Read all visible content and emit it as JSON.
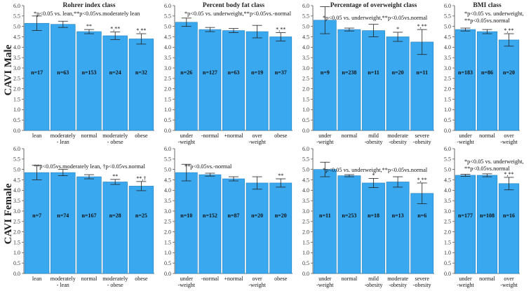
{
  "figure": {
    "row_labels": [
      "CAVI Male",
      "CAVI Female"
    ],
    "bar_color": "#3aa8ef",
    "bar_edge_color": "#1f7fbf",
    "axis_color": "#444444"
  },
  "chart_data": [
    {
      "type": "bar",
      "title": "Rohrer index class",
      "row": "CAVI Male",
      "note": "*p<0.05 vs. lean,**p<0.05vs.moderately lean",
      "categories": [
        "lean",
        "moderately\n- lean",
        "normal",
        "moderately\n- obese",
        "obese"
      ],
      "values": [
        5.15,
        5.1,
        4.75,
        4.55,
        4.4
      ],
      "errors": [
        0.35,
        0.15,
        0.1,
        0.18,
        0.25
      ],
      "sig": [
        "",
        "",
        "**",
        "*,**",
        "*,**"
      ],
      "n": [
        "n=17",
        "n=63",
        "n=153",
        "n=24",
        "n=32"
      ],
      "ylim": [
        0,
        6
      ],
      "yticks": [
        "0.0",
        "0.5",
        "1.0",
        "1.5",
        "2.0",
        "2.5",
        "3.0",
        "3.5",
        "4.0",
        "4.5",
        "5.0",
        "5.5",
        "6.0"
      ]
    },
    {
      "type": "bar",
      "title": "Percent body fat class",
      "row": "CAVI Male",
      "note": "*p<0.05 vs. underweight,**p<0.05vs.-normal",
      "categories": [
        "under\n-weight",
        "-normal",
        "+normal",
        "over\n-weight",
        "obese"
      ],
      "values": [
        5.2,
        4.85,
        4.8,
        4.75,
        4.5
      ],
      "errors": [
        0.2,
        0.1,
        0.1,
        0.3,
        0.2
      ],
      "sig": [
        "",
        "",
        "",
        "",
        "*,**"
      ],
      "n": [
        "n=26",
        "n=127",
        "n=63",
        "n=19",
        "n=37"
      ],
      "ylim": [
        0,
        6
      ],
      "yticks": [
        "0.0",
        "0.5",
        "1.0",
        "1.5",
        "2.0",
        "2.5",
        "3.0",
        "3.5",
        "4.0",
        "4.5",
        "5.0",
        "5.5",
        "6.0"
      ]
    },
    {
      "type": "bar",
      "title": "Percentage of overweight class",
      "row": "CAVI Male",
      "note": "*p<0.05 vs. underweight,**p<0.05vs.normal",
      "categories": [
        "under\n-weight",
        "normal",
        "mild\n-obesity",
        "moderate\n-obesity",
        "severe\n-obesity"
      ],
      "values": [
        5.3,
        4.85,
        4.8,
        4.5,
        4.25
      ],
      "errors": [
        0.65,
        0.07,
        0.3,
        0.22,
        0.6
      ],
      "sig": [
        "",
        "",
        "",
        "*",
        "*,**"
      ],
      "n": [
        "n=9",
        "n=238",
        "n=11",
        "n=20",
        "n=11"
      ],
      "ylim": [
        0,
        6
      ],
      "yticks": [
        "0.0",
        "0.5",
        "1.0",
        "1.5",
        "2.0",
        "2.5",
        "3.0",
        "3.5",
        "4.0",
        "4.5",
        "5.0",
        "5.5",
        "6.0"
      ]
    },
    {
      "type": "bar",
      "title": "BMI class",
      "row": "CAVI Male",
      "note": "*p<0.05 vs. underweight,\n**p<0.05vs.normal",
      "categories": [
        "under\n-weight",
        "normal",
        "over\n-weight"
      ],
      "values": [
        4.85,
        4.75,
        4.35
      ],
      "errors": [
        0.07,
        0.1,
        0.3
      ],
      "sig": [
        "",
        "",
        "*,**"
      ],
      "n": [
        "n=183",
        "n=86",
        "n=20"
      ],
      "ylim": [
        0,
        6
      ],
      "yticks": [
        "0.0",
        "0.5",
        "1.0",
        "1.5",
        "2.0",
        "2.5",
        "3.0",
        "3.5",
        "4.0",
        "4.5",
        "5.0",
        "5.5",
        "6.0"
      ]
    },
    {
      "type": "bar",
      "title": "",
      "row": "CAVI Female",
      "note": "**p<0.05vs.moderately lean, †p<0.05vs.normal",
      "categories": [
        "lean",
        "moderately\n- lean",
        "normal",
        "moderately\n- obese",
        "obese"
      ],
      "values": [
        4.85,
        4.85,
        4.65,
        4.4,
        4.2
      ],
      "errors": [
        0.35,
        0.15,
        0.1,
        0.12,
        0.22
      ],
      "sig": [
        "",
        "",
        "",
        "**",
        "**,†"
      ],
      "n": [
        "n=7",
        "n=74",
        "n=167",
        "n=28",
        "n=25"
      ],
      "ylim": [
        0,
        6
      ],
      "yticks": [
        "0.0",
        "0.5",
        "1.0",
        "1.5",
        "2.0",
        "2.5",
        "3.0",
        "3.5",
        "4.0",
        "4.5",
        "5.0",
        "5.5",
        "6.0"
      ]
    },
    {
      "type": "bar",
      "title": "",
      "row": "CAVI Female",
      "note": "**p<0.05vs.-normal",
      "categories": [
        "under\n-weight",
        "-normal",
        "+normal",
        "over\n-weight",
        "obese"
      ],
      "values": [
        4.85,
        4.75,
        4.55,
        4.35,
        4.35
      ],
      "errors": [
        0.4,
        0.07,
        0.1,
        0.3,
        0.2
      ],
      "sig": [
        "",
        "",
        "",
        "",
        "**"
      ],
      "n": [
        "n=10",
        "n=152",
        "n=87",
        "n=20",
        "n=20"
      ],
      "ylim": [
        0,
        6
      ],
      "yticks": [
        "0.0",
        "0.5",
        "1.0",
        "1.5",
        "2.0",
        "2.5",
        "3.0",
        "3.5",
        "4.0",
        "4.5",
        "5.0",
        "5.5",
        "6.0"
      ]
    },
    {
      "type": "bar",
      "title": "",
      "row": "CAVI Female",
      "note": "*p<0.05 vs. underweight,**p<0.05vs.normal",
      "categories": [
        "under\n-weight",
        "normal",
        "mild\n-obesity",
        "moderate\n-obesity",
        "severe\n-obesity"
      ],
      "values": [
        5.0,
        4.7,
        4.35,
        4.4,
        3.85
      ],
      "errors": [
        0.35,
        0.05,
        0.22,
        0.25,
        0.5
      ],
      "sig": [
        "",
        "",
        "*",
        "",
        "*,**"
      ],
      "n": [
        "n=11",
        "n=253",
        "n=18",
        "n=13",
        "n=6"
      ],
      "ylim": [
        0,
        6
      ],
      "yticks": [
        "0.0",
        "0.5",
        "1.0",
        "1.5",
        "2.0",
        "2.5",
        "3.0",
        "3.5",
        "4.0",
        "4.5",
        "5.0",
        "5.5",
        "6.0"
      ]
    },
    {
      "type": "bar",
      "title": "",
      "row": "CAVI Female",
      "note": "*p<0.05 vs. underweight,\n**p<0.05vs.normal",
      "categories": [
        "under\n-weight",
        "normal",
        "over\n-weight"
      ],
      "values": [
        4.72,
        4.72,
        4.32
      ],
      "errors": [
        0.05,
        0.07,
        0.3
      ],
      "sig": [
        "",
        "",
        "*,**"
      ],
      "n": [
        "n=177",
        "n=108",
        "n=16"
      ],
      "ylim": [
        0,
        6
      ],
      "yticks": [
        "0.0",
        "0.5",
        "1.0",
        "1.5",
        "2.0",
        "2.5",
        "3.0",
        "3.5",
        "4.0",
        "4.5",
        "5.0",
        "5.5",
        "6.0"
      ]
    }
  ]
}
